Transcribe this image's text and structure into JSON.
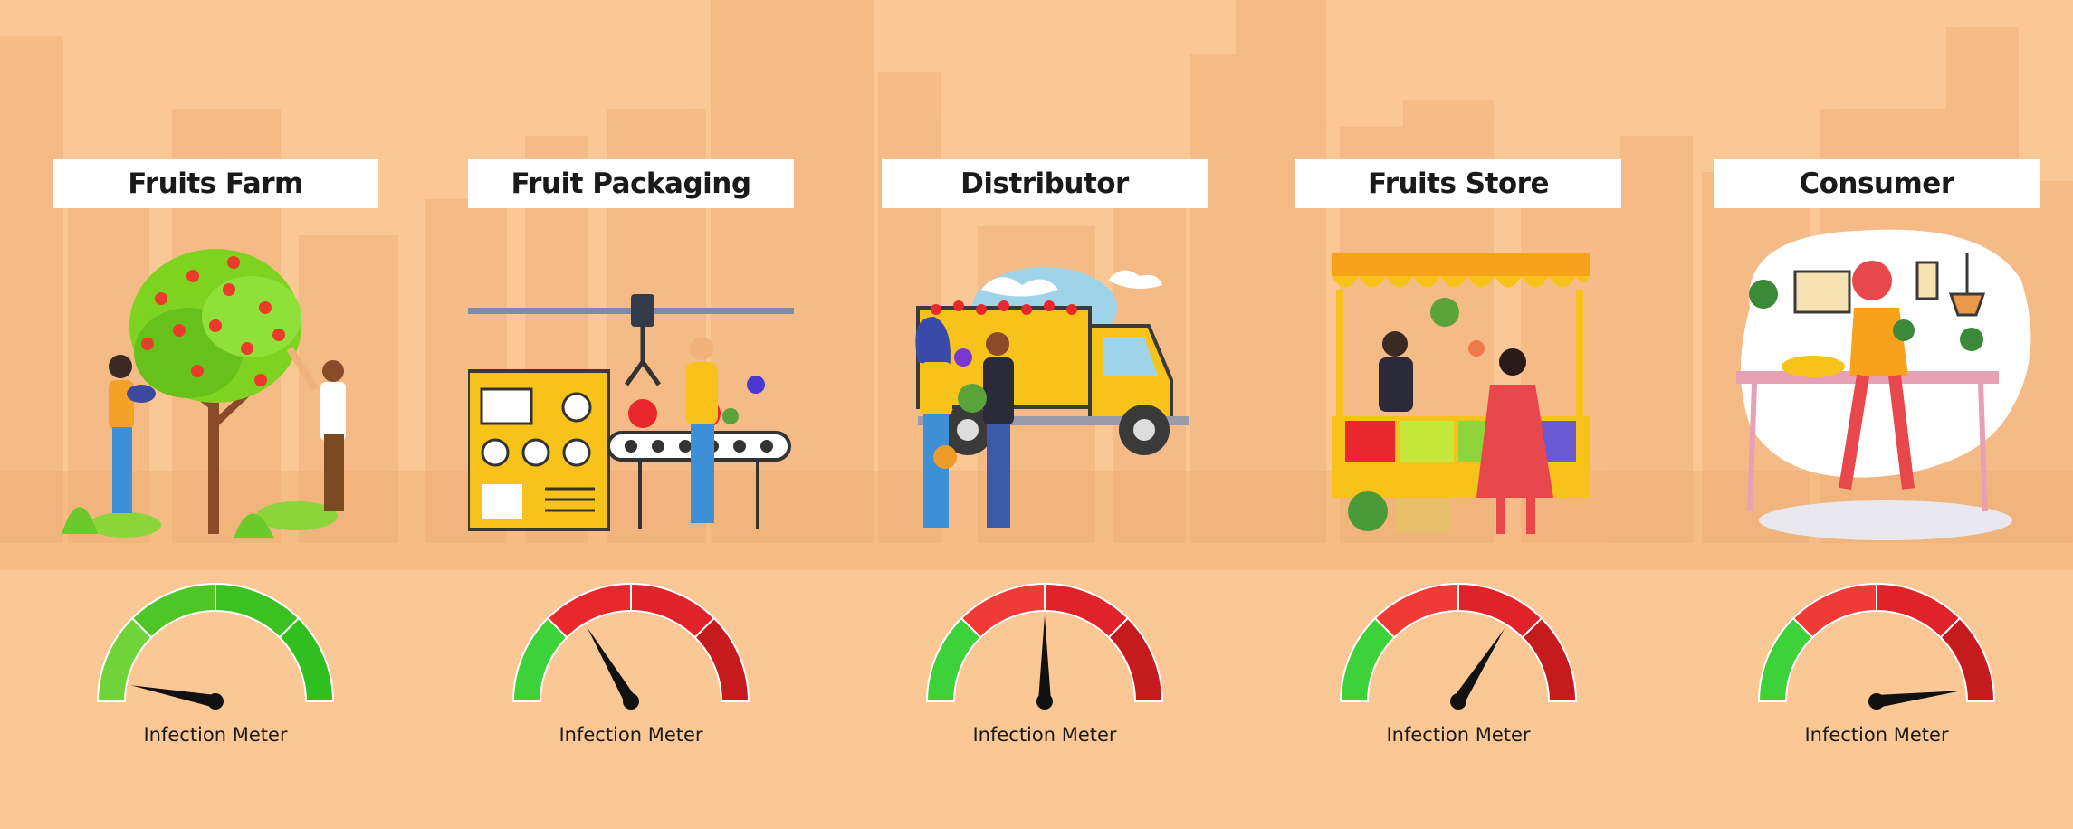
{
  "stages": [
    {
      "id": "farm",
      "title": "Fruits Farm",
      "meter_label": "Infection Meter",
      "infection_level": 0.06,
      "segments": [
        "#6fd43a",
        "#4fc628",
        "#3cc123",
        "#2fbf1f"
      ]
    },
    {
      "id": "packaging",
      "title": "Fruit Packaging",
      "meter_label": "Infection Meter",
      "infection_level": 0.33,
      "segments": [
        "#3dd13a",
        "#e8282c",
        "#e0222a",
        "#c51b1f"
      ]
    },
    {
      "id": "distributor",
      "title": "Distributor",
      "meter_label": "Infection Meter",
      "infection_level": 0.5,
      "segments": [
        "#3dd13a",
        "#ef3a35",
        "#e0222a",
        "#c51b1f"
      ]
    },
    {
      "id": "store",
      "title": "Fruits Store",
      "meter_label": "Infection Meter",
      "infection_level": 0.68,
      "segments": [
        "#3dd13a",
        "#ef3a35",
        "#e0222a",
        "#c51b1f"
      ]
    },
    {
      "id": "consumer",
      "title": "Consumer",
      "meter_label": "Infection Meter",
      "infection_level": 0.96,
      "segments": [
        "#3dd13a",
        "#ef3a35",
        "#e0222a",
        "#c51b1f"
      ]
    }
  ],
  "colors": {
    "background": "#fbc895",
    "city": "#f5b984",
    "needle": "#111111"
  }
}
